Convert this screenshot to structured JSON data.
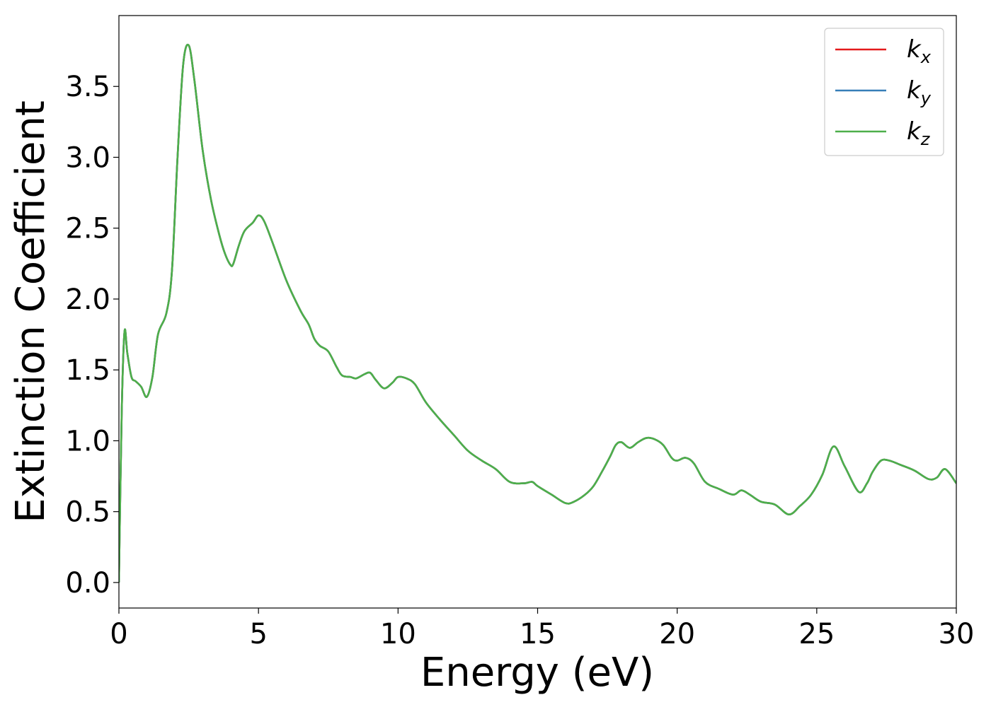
{
  "chart_data": {
    "type": "line",
    "xlabel": "Energy (eV)",
    "ylabel": "Extinction Coefficient",
    "xlim": [
      0,
      30
    ],
    "ylim": [
      -0.18,
      4.0
    ],
    "xticks": [
      0,
      5,
      10,
      15,
      20,
      25,
      30
    ],
    "xtick_labels": [
      "0",
      "5",
      "10",
      "15",
      "20",
      "25",
      "30"
    ],
    "yticks": [
      0.0,
      0.5,
      1.0,
      1.5,
      2.0,
      2.5,
      3.0,
      3.5
    ],
    "ytick_labels": [
      "0.0",
      "0.5",
      "1.0",
      "1.5",
      "2.0",
      "2.5",
      "3.0",
      "3.5"
    ],
    "grid": false,
    "legend_position": "top-right",
    "series": [
      {
        "name": "k",
        "subscript": "x",
        "color": "#e41a1c"
      },
      {
        "name": "k",
        "subscript": "y",
        "color": "#377eb8"
      },
      {
        "name": "k",
        "subscript": "z",
        "color": "#4daf4a"
      }
    ],
    "x": [
      0.0,
      0.1,
      0.2,
      0.3,
      0.45,
      0.6,
      0.8,
      1.0,
      1.2,
      1.4,
      1.7,
      1.9,
      2.1,
      2.3,
      2.5,
      2.7,
      3.0,
      3.3,
      3.6,
      3.8,
      4.0,
      4.1,
      4.3,
      4.5,
      4.8,
      5.0,
      5.2,
      5.5,
      6.0,
      6.5,
      6.8,
      7.0,
      7.2,
      7.5,
      7.8,
      8.0,
      8.3,
      8.5,
      8.8,
      9.0,
      9.2,
      9.5,
      9.8,
      10.0,
      10.3,
      10.6,
      11.0,
      11.5,
      12.0,
      12.5,
      13.0,
      13.5,
      14.0,
      14.5,
      14.8,
      15.0,
      15.5,
      16.0,
      16.3,
      16.7,
      17.0,
      17.3,
      17.6,
      17.8,
      18.0,
      18.3,
      18.6,
      18.9,
      19.2,
      19.5,
      19.8,
      20.0,
      20.3,
      20.6,
      21.0,
      21.5,
      22.0,
      22.3,
      22.6,
      23.0,
      23.5,
      24.0,
      24.4,
      24.8,
      25.2,
      25.6,
      26.0,
      26.5,
      26.8,
      27.0,
      27.3,
      27.6,
      28.0,
      28.5,
      29.0,
      29.3,
      29.6,
      30.0
    ],
    "values": [
      0.0,
      1.2,
      1.77,
      1.62,
      1.45,
      1.42,
      1.38,
      1.31,
      1.45,
      1.75,
      1.9,
      2.2,
      3.0,
      3.65,
      3.79,
      3.55,
      3.05,
      2.7,
      2.45,
      2.32,
      2.24,
      2.25,
      2.38,
      2.48,
      2.54,
      2.59,
      2.55,
      2.4,
      2.13,
      1.92,
      1.82,
      1.72,
      1.67,
      1.63,
      1.52,
      1.46,
      1.45,
      1.44,
      1.47,
      1.48,
      1.43,
      1.37,
      1.41,
      1.45,
      1.44,
      1.4,
      1.27,
      1.15,
      1.04,
      0.93,
      0.86,
      0.8,
      0.71,
      0.7,
      0.71,
      0.68,
      0.62,
      0.56,
      0.57,
      0.62,
      0.68,
      0.78,
      0.89,
      0.97,
      0.99,
      0.95,
      0.99,
      1.02,
      1.01,
      0.97,
      0.88,
      0.86,
      0.88,
      0.84,
      0.71,
      0.66,
      0.62,
      0.65,
      0.62,
      0.57,
      0.55,
      0.48,
      0.54,
      0.62,
      0.76,
      0.96,
      0.82,
      0.64,
      0.7,
      0.78,
      0.86,
      0.86,
      0.83,
      0.79,
      0.73,
      0.74,
      0.8,
      0.7
    ]
  }
}
